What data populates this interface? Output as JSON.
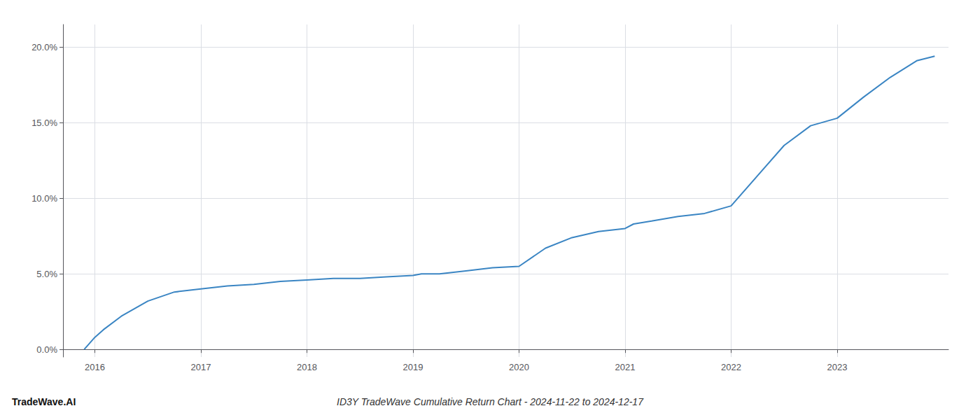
{
  "chart_data": {
    "type": "line",
    "title": "ID3Y TradeWave Cumulative Return Chart - 2024-11-22 to 2024-12-17",
    "annotations": [
      "TradeWave.AI"
    ],
    "x": [
      2015.9,
      2016.0,
      2016.08,
      2016.25,
      2016.5,
      2016.75,
      2017.0,
      2017.25,
      2017.5,
      2017.75,
      2018.0,
      2018.25,
      2018.5,
      2018.75,
      2019.0,
      2019.08,
      2019.25,
      2019.5,
      2019.75,
      2020.0,
      2020.25,
      2020.5,
      2020.75,
      2021.0,
      2021.08,
      2021.25,
      2021.5,
      2021.75,
      2022.0,
      2022.25,
      2022.5,
      2022.75,
      2023.0,
      2023.25,
      2023.5,
      2023.75,
      2023.92
    ],
    "values": [
      0.0,
      0.008,
      0.013,
      0.022,
      0.032,
      0.038,
      0.04,
      0.042,
      0.043,
      0.045,
      0.046,
      0.047,
      0.047,
      0.048,
      0.049,
      0.05,
      0.05,
      0.052,
      0.054,
      0.055,
      0.067,
      0.074,
      0.078,
      0.08,
      0.083,
      0.085,
      0.088,
      0.09,
      0.095,
      0.115,
      0.135,
      0.148,
      0.153,
      0.167,
      0.18,
      0.191,
      0.194
    ],
    "color": "#3a85c3",
    "xlim": [
      2015.7,
      2024.05
    ],
    "ylim": [
      -0.005,
      0.215
    ],
    "xticks": [
      2016,
      2017,
      2018,
      2019,
      2020,
      2021,
      2022,
      2023
    ],
    "yticks": [
      {
        "value": 0.0,
        "label": "0.0%"
      },
      {
        "value": 0.05,
        "label": "5.0%"
      },
      {
        "value": 0.1,
        "label": "10.0%"
      },
      {
        "value": 0.15,
        "label": "15.0%"
      },
      {
        "value": 0.2,
        "label": "20.0%"
      }
    ],
    "grid": true
  }
}
